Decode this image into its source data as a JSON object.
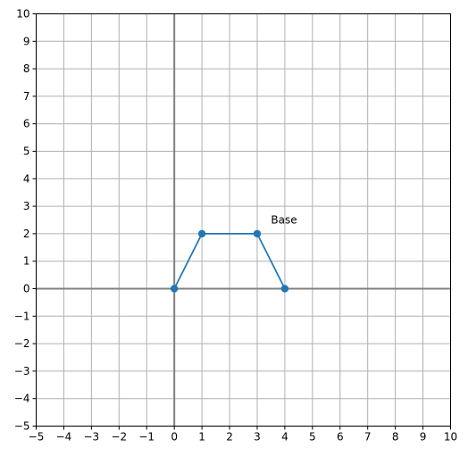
{
  "chart_data": {
    "type": "line",
    "title": "",
    "xlabel": "",
    "ylabel": "",
    "xlim": [
      -5,
      10
    ],
    "ylim": [
      -5,
      10
    ],
    "xticks": [
      -5,
      -4,
      -3,
      -2,
      -1,
      0,
      1,
      2,
      3,
      4,
      5,
      6,
      7,
      8,
      9,
      10
    ],
    "yticks": [
      -5,
      -4,
      -3,
      -2,
      -1,
      0,
      1,
      2,
      3,
      4,
      5,
      6,
      7,
      8,
      9,
      10
    ],
    "xtick_labels": [
      "−5",
      "−4",
      "−3",
      "−2",
      "−1",
      "0",
      "1",
      "2",
      "3",
      "4",
      "5",
      "6",
      "7",
      "8",
      "9",
      "10"
    ],
    "ytick_labels": [
      "−5",
      "−4",
      "−3",
      "−2",
      "−1",
      "0",
      "1",
      "2",
      "3",
      "4",
      "5",
      "6",
      "7",
      "8",
      "9",
      "10"
    ],
    "grid": true,
    "axis_lines_at_zero": true,
    "series": [
      {
        "x": [
          0,
          1,
          3,
          4
        ],
        "y": [
          0,
          2,
          2,
          0
        ],
        "marker": "circle",
        "color": "#1f77b4"
      }
    ],
    "annotations": [
      {
        "text": "Base",
        "x": 3.5,
        "y": 2.5
      }
    ],
    "colors": {
      "series": "#1f77b4",
      "grid": "#b0b0b0",
      "zero_axes": "#808080",
      "frame": "#000000"
    }
  }
}
